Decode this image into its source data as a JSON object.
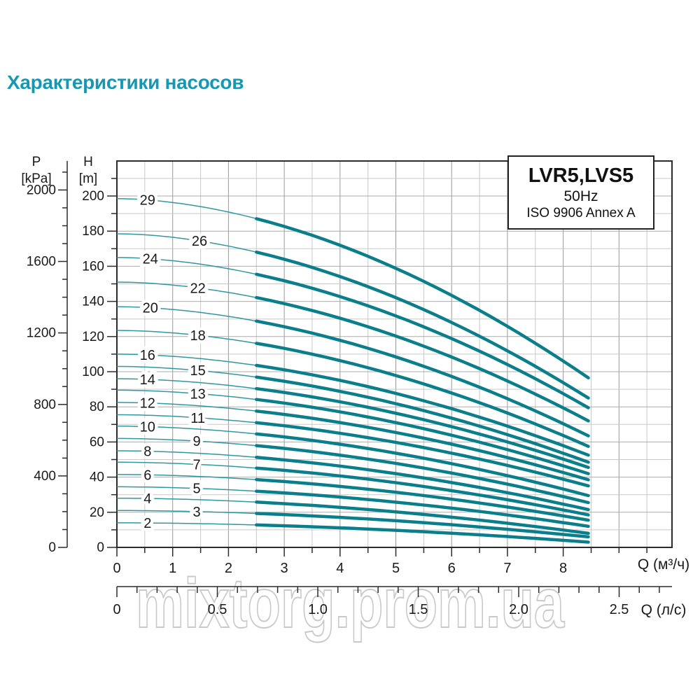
{
  "page": {
    "heading": "Характеристики насосов",
    "heading_color": "#1797b1",
    "background": "#ffffff"
  },
  "watermark": {
    "text": "mixtorg.prom.ua",
    "outline_color": "#c9c9c9"
  },
  "chart_data": {
    "type": "line",
    "legend": {
      "model": "LVR5,LVS5",
      "frequency": "50Hz",
      "standard": "ISO 9906 Annex A"
    },
    "colors": {
      "curve_bold": "#0b7e8c",
      "curve_thin": "#2f98a0",
      "axis": "#2b2b2b",
      "grid_minor": "#c9c9c9",
      "grid_major_v": "#9a9a9a",
      "grid_major_h": "#ababab",
      "tick_text": "#1a1a1a"
    },
    "x_axis_m3h": {
      "label": "Q (м³/ч)",
      "values": [
        0,
        1,
        2,
        3,
        4,
        5,
        6,
        7,
        8
      ],
      "minor_step": 0.5,
      "minor_max": 9.5,
      "range": [
        0,
        9.95
      ]
    },
    "x_axis_ls": {
      "label": "Q (л/с)",
      "values": [
        0,
        0.5,
        1,
        1.5,
        2,
        2.5
      ],
      "labels": [
        "0",
        "0.5",
        "1.0",
        "1.5",
        "2.0",
        "2.5"
      ],
      "minor_step": 0.1,
      "minor_max": 2.7
    },
    "y_axis_head": {
      "label": "H",
      "unit": "[m]",
      "values": [
        0,
        20,
        40,
        60,
        80,
        100,
        120,
        140,
        160,
        180,
        200
      ],
      "minor_step": 10,
      "minor_max": 210,
      "range": [
        0,
        220
      ]
    },
    "y_axis_pressure": {
      "label": "P",
      "unit": "[kPa]",
      "values": [
        0,
        400,
        800,
        1200,
        1600,
        2000
      ],
      "minor_step": 100,
      "minor_max": 2100
    },
    "q_max": 8.45,
    "q_bold_from": 2.5,
    "shape_exponent": 1.8,
    "series": [
      {
        "name": "2",
        "h0": 14,
        "h_end": 3,
        "label_q": 0.55
      },
      {
        "name": "3",
        "h0": 21,
        "h_end": 6,
        "label_q": 1.43
      },
      {
        "name": "4",
        "h0": 28,
        "h_end": 8,
        "label_q": 0.55
      },
      {
        "name": "5",
        "h0": 34.5,
        "h_end": 12,
        "label_q": 1.43
      },
      {
        "name": "6",
        "h0": 41.5,
        "h_end": 15.5,
        "label_q": 0.55
      },
      {
        "name": "7",
        "h0": 48.5,
        "h_end": 18.5,
        "label_q": 1.43
      },
      {
        "name": "8",
        "h0": 55,
        "h_end": 21.5,
        "label_q": 0.55
      },
      {
        "name": "9",
        "h0": 62,
        "h_end": 25.5,
        "label_q": 1.43
      },
      {
        "name": "10",
        "h0": 69,
        "h_end": 29.5,
        "label_q": 0.55
      },
      {
        "name": "11",
        "h0": 75.5,
        "h_end": 35,
        "label_q": 1.45
      },
      {
        "name": "12",
        "h0": 82.5,
        "h_end": 38.5,
        "label_q": 0.55
      },
      {
        "name": "13",
        "h0": 89.5,
        "h_end": 42,
        "label_q": 1.45
      },
      {
        "name": "14",
        "h0": 96,
        "h_end": 45.5,
        "label_q": 0.55
      },
      {
        "name": "15",
        "h0": 103,
        "h_end": 48.5,
        "label_q": 1.45
      },
      {
        "name": "16",
        "h0": 110,
        "h_end": 52.5,
        "label_q": 0.55
      },
      {
        "name": "18",
        "h0": 123.5,
        "h_end": 57.5,
        "label_q": 1.45
      },
      {
        "name": "20",
        "h0": 137,
        "h_end": 63.5,
        "label_q": 0.6
      },
      {
        "name": "22",
        "h0": 151,
        "h_end": 72,
        "label_q": 1.45
      },
      {
        "name": "24",
        "h0": 165,
        "h_end": 79.5,
        "label_q": 0.6
      },
      {
        "name": "26",
        "h0": 178.5,
        "h_end": 85,
        "label_q": 1.48
      },
      {
        "name": "29",
        "h0": 198.5,
        "h_end": 96.5,
        "label_q": 0.55
      }
    ]
  }
}
